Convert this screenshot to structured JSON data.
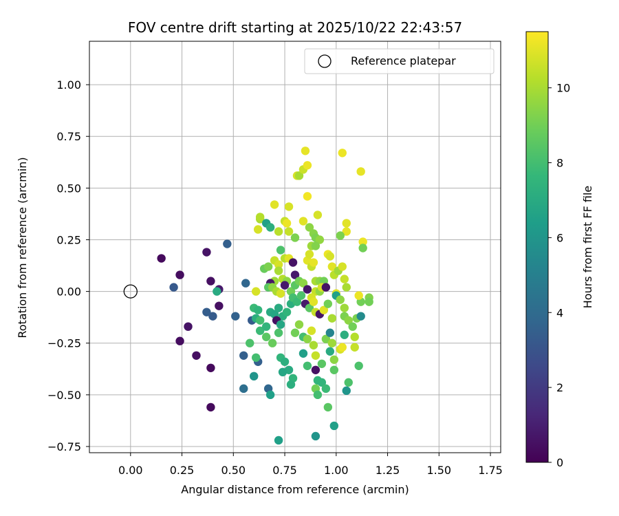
{
  "chart_data": {
    "type": "scatter",
    "title": "FOV centre drift starting at 2025/10/22 22:43:57",
    "xlabel": "Angular distance from reference (arcmin)",
    "ylabel": "Rotation from reference (arcmin)",
    "xlim": [
      -0.2,
      1.8
    ],
    "ylim": [
      -0.78,
      1.21
    ],
    "x_ticks": [
      0.0,
      0.25,
      0.5,
      0.75,
      1.0,
      1.25,
      1.5,
      1.75
    ],
    "x_tick_labels": [
      "0.00",
      "0.25",
      "0.50",
      "0.75",
      "1.00",
      "1.25",
      "1.50",
      "1.75"
    ],
    "y_ticks": [
      -0.75,
      -0.5,
      -0.25,
      0.0,
      0.25,
      0.5,
      0.75,
      1.0
    ],
    "y_tick_labels": [
      "−0.75",
      "−0.50",
      "−0.25",
      "0.00",
      "0.25",
      "0.50",
      "0.75",
      "1.00"
    ],
    "grid": true,
    "legend": {
      "position": "top-right",
      "entries": [
        "Reference platepar"
      ]
    },
    "reference_point": {
      "x": 0.0,
      "y": 0.0
    },
    "colorbar": {
      "label": "Hours from first FF file",
      "range": [
        0,
        11.5
      ],
      "ticks": [
        0,
        2,
        4,
        6,
        8,
        10
      ],
      "tick_labels": [
        "0",
        "2",
        "4",
        "6",
        "8",
        "10"
      ],
      "colormap": "viridis",
      "colors": [
        "#440154",
        "#482878",
        "#3e4989",
        "#31688e",
        "#26828e",
        "#1f9e89",
        "#35b779",
        "#6ece58",
        "#b5de2b",
        "#fde725"
      ]
    },
    "series": [
      {
        "name": "FOV centre",
        "points": [
          [
            0.15,
            0.16,
            0.3
          ],
          [
            0.24,
            0.08,
            0.4
          ],
          [
            0.37,
            0.19,
            0.6
          ],
          [
            0.47,
            0.23,
            3.5
          ],
          [
            0.21,
            0.02,
            3.2
          ],
          [
            0.39,
            0.05,
            0.5
          ],
          [
            0.43,
            0.01,
            0.8
          ],
          [
            0.42,
            0.0,
            7.0
          ],
          [
            0.28,
            -0.17,
            0.6
          ],
          [
            0.24,
            -0.24,
            0.4
          ],
          [
            0.37,
            -0.1,
            3.4
          ],
          [
            0.4,
            -0.12,
            3.3
          ],
          [
            0.43,
            -0.07,
            0.5
          ],
          [
            0.51,
            -0.12,
            3.6
          ],
          [
            0.32,
            -0.31,
            0.5
          ],
          [
            0.39,
            -0.37,
            0.3
          ],
          [
            0.39,
            -0.56,
            0.3
          ],
          [
            0.56,
            0.04,
            3.8
          ],
          [
            0.55,
            -0.31,
            3.5
          ],
          [
            0.55,
            -0.47,
            4.2
          ],
          [
            0.62,
            -0.34,
            3.5
          ],
          [
            0.59,
            -0.14,
            3.3
          ],
          [
            0.6,
            -0.41,
            6.0
          ],
          [
            0.62,
            0.3,
            10.8
          ],
          [
            0.63,
            0.35,
            10.0
          ],
          [
            0.63,
            0.36,
            10.2
          ],
          [
            0.66,
            0.33,
            6.5
          ],
          [
            0.68,
            0.31,
            7.2
          ],
          [
            0.7,
            0.42,
            11.0
          ],
          [
            0.72,
            0.29,
            10.3
          ],
          [
            0.75,
            0.34,
            10.5
          ],
          [
            0.76,
            0.33,
            11.2
          ],
          [
            0.77,
            0.41,
            10.8
          ],
          [
            0.77,
            0.29,
            10.5
          ],
          [
            0.8,
            0.26,
            9.2
          ],
          [
            0.81,
            0.56,
            10.8
          ],
          [
            0.82,
            0.56,
            10.0
          ],
          [
            0.84,
            0.59,
            10.6
          ],
          [
            0.85,
            0.68,
            11.1
          ],
          [
            0.86,
            0.61,
            11.2
          ],
          [
            0.84,
            0.34,
            11.0
          ],
          [
            0.86,
            0.46,
            11.3
          ],
          [
            0.87,
            0.31,
            9.5
          ],
          [
            0.89,
            0.28,
            9.4
          ],
          [
            0.9,
            0.26,
            9.2
          ],
          [
            0.91,
            0.37,
            10.8
          ],
          [
            0.92,
            0.25,
            9.6
          ],
          [
            0.88,
            0.22,
            9.8
          ],
          [
            0.9,
            0.22,
            9.3
          ],
          [
            1.03,
            0.67,
            11.2
          ],
          [
            1.12,
            0.58,
            11.1
          ],
          [
            1.05,
            0.33,
            11.0
          ],
          [
            1.05,
            0.29,
            11.1
          ],
          [
            1.02,
            0.27,
            9.2
          ],
          [
            1.13,
            0.24,
            11.2
          ],
          [
            1.13,
            0.21,
            9.0
          ],
          [
            0.65,
            0.11,
            8.8
          ],
          [
            0.67,
            0.12,
            9.2
          ],
          [
            0.7,
            0.15,
            10.5
          ],
          [
            0.72,
            0.13,
            10.8
          ],
          [
            0.73,
            0.2,
            8.2
          ],
          [
            0.75,
            0.16,
            10.3
          ],
          [
            0.77,
            0.16,
            11.0
          ],
          [
            0.79,
            0.14,
            0.6
          ],
          [
            0.8,
            0.08,
            0.8
          ],
          [
            0.7,
            0.05,
            9.8
          ],
          [
            0.72,
            0.1,
            10.0
          ],
          [
            0.74,
            0.06,
            10.2
          ],
          [
            0.76,
            0.05,
            9.5
          ],
          [
            0.68,
            0.04,
            0.7
          ],
          [
            0.67,
            0.02,
            8.5
          ],
          [
            0.69,
            0.02,
            9.5
          ],
          [
            0.71,
            0.0,
            10.0
          ],
          [
            0.73,
            -0.01,
            10.8
          ],
          [
            0.75,
            0.03,
            0.8
          ],
          [
            0.78,
            0.0,
            9.0
          ],
          [
            0.8,
            0.03,
            8.5
          ],
          [
            0.82,
            0.05,
            9.0
          ],
          [
            0.84,
            0.04,
            9.5
          ],
          [
            0.86,
            0.15,
            11.0
          ],
          [
            0.87,
            0.18,
            10.8
          ],
          [
            0.88,
            0.12,
            10.5
          ],
          [
            0.89,
            0.14,
            11.1
          ],
          [
            0.9,
            0.05,
            10.0
          ],
          [
            0.92,
            0.05,
            9.5
          ],
          [
            0.94,
            0.05,
            9.0
          ],
          [
            0.96,
            0.18,
            11.2
          ],
          [
            0.97,
            0.17,
            10.8
          ],
          [
            0.98,
            0.12,
            11.0
          ],
          [
            0.99,
            0.08,
            10.3
          ],
          [
            1.01,
            0.1,
            9.8
          ],
          [
            1.03,
            0.12,
            10.8
          ],
          [
            1.04,
            0.06,
            10.5
          ],
          [
            1.05,
            0.02,
            10.0
          ],
          [
            0.86,
            0.01,
            0.7
          ],
          [
            0.9,
            0.0,
            10.5
          ],
          [
            0.92,
            0.0,
            9.6
          ],
          [
            0.93,
            0.02,
            10.8
          ],
          [
            0.95,
            0.02,
            0.6
          ],
          [
            1.0,
            -0.01,
            11.0
          ],
          [
            0.61,
            0.0,
            10.8
          ],
          [
            0.6,
            -0.08,
            7.8
          ],
          [
            0.62,
            -0.09,
            7.5
          ],
          [
            0.61,
            -0.13,
            7.2
          ],
          [
            0.63,
            -0.14,
            8.0
          ],
          [
            0.63,
            -0.19,
            7.8
          ],
          [
            0.66,
            -0.17,
            7.5
          ],
          [
            0.68,
            -0.1,
            7.0
          ],
          [
            0.7,
            -0.11,
            6.8
          ],
          [
            0.72,
            -0.08,
            7.0
          ],
          [
            0.74,
            -0.12,
            7.2
          ],
          [
            0.76,
            -0.1,
            7.5
          ],
          [
            0.71,
            -0.14,
            0.5
          ],
          [
            0.73,
            -0.16,
            6.8
          ],
          [
            0.78,
            -0.06,
            7.2
          ],
          [
            0.79,
            -0.03,
            8.0
          ],
          [
            0.81,
            -0.05,
            7.8
          ],
          [
            0.83,
            -0.02,
            8.2
          ],
          [
            0.85,
            -0.06,
            0.8
          ],
          [
            0.87,
            -0.08,
            8.5
          ],
          [
            0.88,
            -0.03,
            10.8
          ],
          [
            0.89,
            -0.05,
            11.0
          ],
          [
            0.9,
            -0.1,
            10.5
          ],
          [
            0.92,
            -0.11,
            0.6
          ],
          [
            0.94,
            -0.09,
            11.0
          ],
          [
            0.96,
            -0.06,
            9.0
          ],
          [
            0.98,
            -0.13,
            10.0
          ],
          [
            1.0,
            -0.02,
            6.5
          ],
          [
            1.02,
            -0.04,
            9.5
          ],
          [
            1.04,
            -0.08,
            9.8
          ],
          [
            1.04,
            -0.12,
            9.2
          ],
          [
            1.06,
            -0.14,
            9.5
          ],
          [
            1.08,
            -0.17,
            9.0
          ],
          [
            1.1,
            -0.13,
            9.2
          ],
          [
            1.12,
            -0.12,
            5.5
          ],
          [
            1.12,
            -0.05,
            9.0
          ],
          [
            1.16,
            -0.03,
            9.3
          ],
          [
            1.16,
            -0.05,
            9.0
          ],
          [
            1.11,
            -0.02,
            11.2
          ],
          [
            0.66,
            -0.22,
            8.5
          ],
          [
            0.69,
            -0.25,
            8.8
          ],
          [
            0.72,
            -0.2,
            8.2
          ],
          [
            0.73,
            -0.32,
            7.5
          ],
          [
            0.75,
            -0.34,
            7.2
          ],
          [
            0.77,
            -0.38,
            7.0
          ],
          [
            0.79,
            -0.42,
            7.5
          ],
          [
            0.78,
            -0.45,
            7.2
          ],
          [
            0.74,
            -0.39,
            6.8
          ],
          [
            0.8,
            -0.2,
            9.0
          ],
          [
            0.82,
            -0.16,
            9.5
          ],
          [
            0.84,
            -0.22,
            8.0
          ],
          [
            0.84,
            -0.3,
            6.5
          ],
          [
            0.86,
            -0.23,
            9.5
          ],
          [
            0.86,
            -0.36,
            8.0
          ],
          [
            0.88,
            -0.19,
            10.8
          ],
          [
            0.89,
            -0.26,
            10.0
          ],
          [
            0.9,
            -0.31,
            10.5
          ],
          [
            0.9,
            -0.38,
            0.5
          ],
          [
            0.91,
            -0.43,
            7.5
          ],
          [
            0.93,
            -0.35,
            8.5
          ],
          [
            0.93,
            -0.44,
            7.5
          ],
          [
            0.95,
            -0.23,
            9.2
          ],
          [
            0.97,
            -0.2,
            5.2
          ],
          [
            0.97,
            -0.29,
            7.0
          ],
          [
            0.98,
            -0.25,
            9.8
          ],
          [
            0.99,
            -0.33,
            9.5
          ],
          [
            0.99,
            -0.38,
            8.5
          ],
          [
            1.02,
            -0.28,
            10.8
          ],
          [
            1.03,
            -0.27,
            11.2
          ],
          [
            1.04,
            -0.21,
            7.2
          ],
          [
            1.06,
            -0.44,
            8.2
          ],
          [
            1.11,
            -0.36,
            8.2
          ],
          [
            1.09,
            -0.22,
            10.2
          ],
          [
            1.09,
            -0.27,
            10.5
          ],
          [
            0.99,
            -0.65,
            6.5
          ],
          [
            0.9,
            -0.7,
            6.0
          ],
          [
            0.72,
            -0.72,
            6.5
          ],
          [
            0.67,
            -0.47,
            3.8
          ],
          [
            0.68,
            -0.5,
            6.5
          ],
          [
            0.95,
            -0.47,
            7.8
          ],
          [
            0.96,
            -0.56,
            8.5
          ],
          [
            0.9,
            -0.47,
            9.0
          ],
          [
            0.91,
            -0.5,
            8.0
          ],
          [
            1.05,
            -0.48,
            6.0
          ],
          [
            0.61,
            -0.32,
            8.0
          ],
          [
            0.58,
            -0.25,
            8.2
          ]
        ]
      }
    ]
  }
}
